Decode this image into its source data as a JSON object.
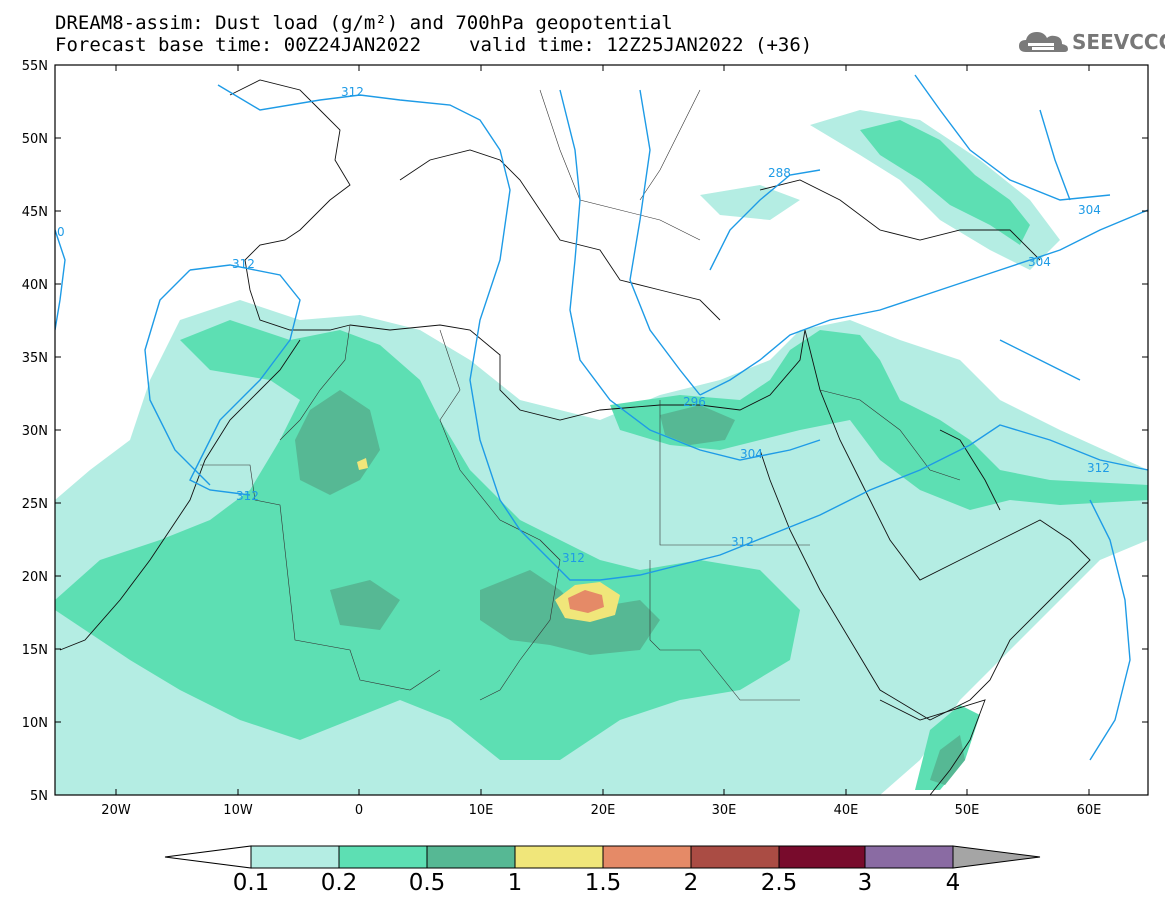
{
  "title": {
    "line1": "DREAM8-assim: Dust load (g/m²) and 700hPa geopotential",
    "line2_left": "Forecast base time: 00Z24JAN2022",
    "line2_right": "valid time: 12Z25JAN2022 (+36)"
  },
  "logo": {
    "text": "SEEVCCC",
    "icon": "cloud-logo-icon"
  },
  "map": {
    "lat_labels": [
      "55N",
      "50N",
      "45N",
      "40N",
      "35N",
      "30N",
      "25N",
      "20N",
      "15N",
      "10N",
      "5N"
    ],
    "lon_labels": [
      "20W",
      "10W",
      "0",
      "10E",
      "20E",
      "30E",
      "40E",
      "50E",
      "60E"
    ],
    "contour_labels": [
      "312",
      "288",
      "304",
      "304",
      "312",
      "296",
      "304",
      "312",
      "312",
      "312",
      "312",
      "0"
    ],
    "dust_colors": [
      "#b4ede3",
      "#5ddfb3",
      "#56b894",
      "#f0e67a",
      "#e58a67",
      "#aa4c44"
    ]
  },
  "colorbar": {
    "labels": [
      "0.1",
      "0.2",
      "0.5",
      "1",
      "1.5",
      "2",
      "2.5",
      "3",
      "4"
    ],
    "colors": [
      "#b4ede3",
      "#5ddfb3",
      "#56b894",
      "#f0e67a",
      "#e58a67",
      "#aa4c44",
      "#780b2c",
      "#8a6ba3"
    ],
    "under_color": "#ffffff",
    "over_color": "#a5a5a5"
  }
}
